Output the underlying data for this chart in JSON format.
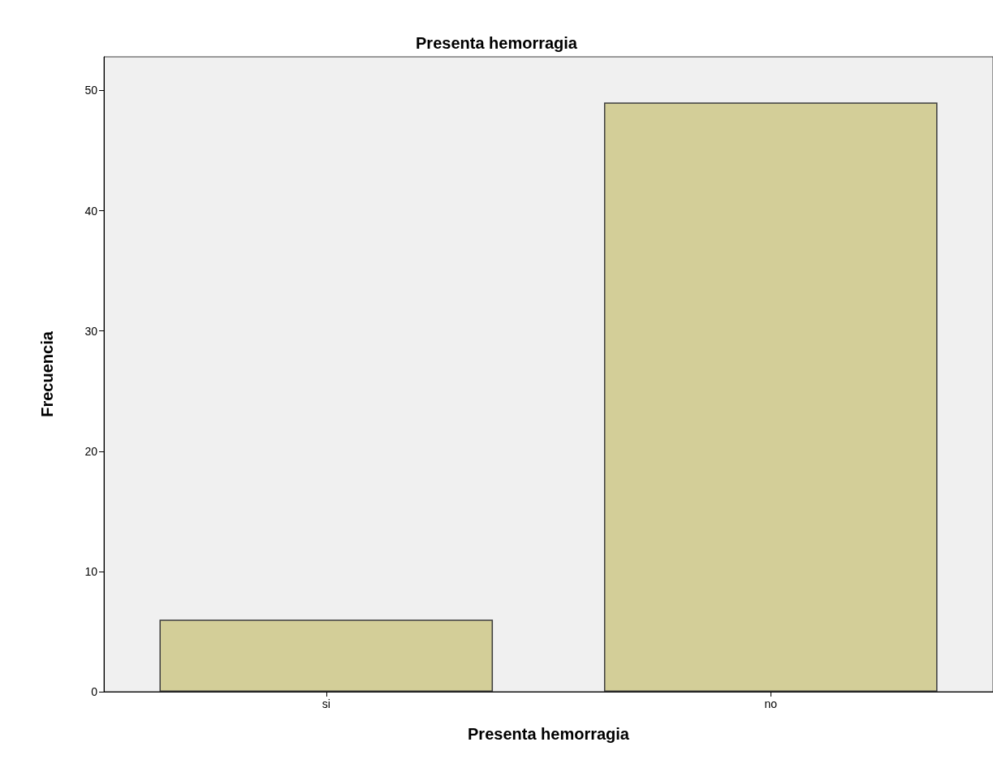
{
  "chart_data": {
    "type": "bar",
    "title": "Presenta hemorragia",
    "xlabel": "Presenta hemorragia",
    "ylabel": "Frecuencia",
    "categories": [
      "si",
      "no"
    ],
    "values": [
      6,
      49
    ],
    "color": "#d3ce98",
    "ylim": [
      0,
      52.8
    ],
    "yticks": [
      0,
      10,
      20,
      30,
      40,
      50
    ],
    "grid": false
  }
}
